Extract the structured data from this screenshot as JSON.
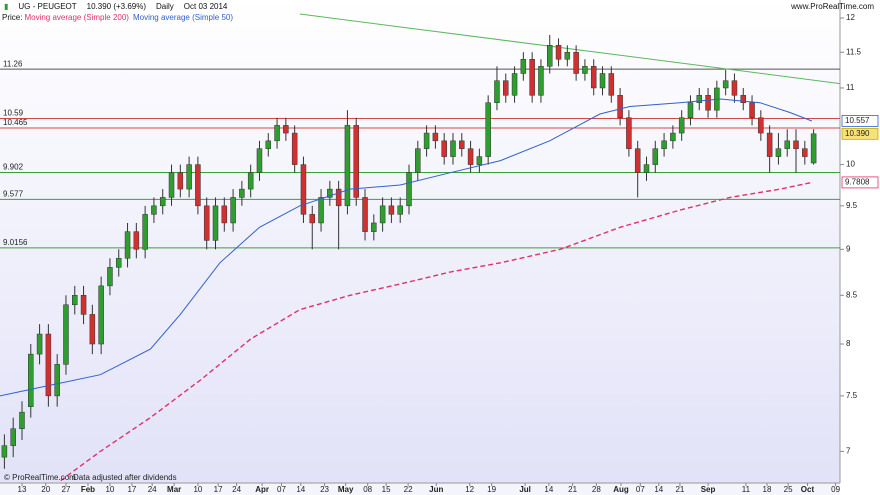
{
  "header": {
    "symbol": "UG - PEUGEOT",
    "price": "10.390 (+3.69%)",
    "period": "Daily",
    "date": "Oct 03 2014",
    "price_label": "Price:",
    "site": "www.ProRealTime.com"
  },
  "footer": {
    "copyright": "© ProRealTime.com",
    "note": "Data adjusted after dividends"
  },
  "chart_data": {
    "type": "candlestick",
    "log": true,
    "up_color": "#2e9e2e",
    "down_color": "#d03030",
    "open": [
      6.95,
      7.05,
      7.2,
      7.4,
      7.9,
      8.1,
      7.5,
      7.8,
      8.4,
      8.5,
      8.3,
      8.0,
      8.6,
      8.8,
      8.9,
      9.2,
      9.0,
      9.4,
      9.5,
      9.6,
      9.9,
      9.7,
      10.0,
      9.5,
      9.1,
      9.5,
      9.3,
      9.6,
      9.7,
      9.9,
      10.2,
      10.3,
      10.5,
      10.4,
      10.0,
      9.4,
      9.3,
      9.6,
      9.7,
      9.5,
      10.5,
      9.6,
      9.2,
      9.3,
      9.5,
      9.4,
      9.5,
      9.9,
      10.2,
      10.4,
      10.3,
      10.1,
      10.3,
      10.2,
      10.0,
      10.1,
      10.8,
      11.1,
      10.9,
      11.2,
      11.4,
      10.9,
      11.3,
      11.6,
      11.4,
      11.5,
      11.2,
      11.3,
      11.0,
      11.2,
      10.9,
      10.6,
      10.2,
      9.9,
      10.0,
      10.2,
      10.3,
      10.4,
      10.6,
      10.8,
      10.9,
      10.7,
      11.0,
      11.1,
      10.9,
      10.8,
      10.6,
      10.4,
      10.1,
      10.2,
      10.3,
      10.2,
      10.02
    ],
    "high": [
      7.15,
      7.3,
      7.45,
      8.0,
      8.2,
      8.2,
      7.9,
      8.5,
      8.6,
      8.6,
      8.4,
      8.7,
      8.9,
      9.0,
      9.3,
      9.3,
      9.5,
      9.6,
      9.7,
      10.0,
      10.0,
      10.1,
      10.1,
      9.6,
      9.6,
      9.6,
      9.7,
      9.8,
      10.0,
      10.3,
      10.4,
      10.6,
      10.6,
      10.5,
      10.1,
      9.5,
      9.7,
      9.8,
      9.8,
      10.7,
      10.6,
      9.7,
      9.4,
      9.6,
      9.6,
      9.6,
      10.0,
      10.3,
      10.5,
      10.5,
      10.4,
      10.4,
      10.4,
      10.3,
      10.2,
      10.9,
      11.3,
      11.2,
      11.3,
      11.5,
      11.5,
      11.4,
      11.75,
      11.7,
      11.6,
      11.6,
      11.4,
      11.4,
      11.3,
      11.3,
      11.0,
      10.7,
      10.3,
      10.1,
      10.3,
      10.4,
      10.5,
      10.7,
      10.9,
      11.0,
      11.0,
      11.1,
      11.25,
      11.2,
      11.0,
      10.9,
      10.7,
      10.5,
      10.4,
      10.45,
      10.45,
      10.3,
      10.45
    ],
    "low": [
      6.85,
      6.95,
      7.1,
      7.3,
      7.8,
      7.4,
      7.4,
      7.7,
      8.3,
      8.2,
      7.9,
      7.9,
      8.5,
      8.7,
      8.8,
      8.9,
      8.9,
      9.3,
      9.4,
      9.5,
      9.6,
      9.6,
      9.4,
      9.0,
      9.0,
      9.2,
      9.2,
      9.5,
      9.6,
      9.8,
      10.1,
      10.2,
      10.3,
      9.9,
      9.3,
      9.0,
      9.2,
      9.5,
      9.0,
      9.4,
      9.5,
      9.1,
      9.1,
      9.2,
      9.3,
      9.3,
      9.4,
      9.8,
      10.1,
      10.2,
      10.0,
      10.0,
      10.1,
      9.9,
      9.9,
      10.0,
      10.7,
      10.8,
      10.8,
      11.1,
      10.8,
      10.8,
      11.2,
      11.3,
      11.3,
      11.1,
      11.1,
      10.9,
      10.9,
      10.8,
      10.5,
      10.1,
      9.6,
      9.8,
      9.9,
      10.1,
      10.2,
      10.3,
      10.5,
      10.7,
      10.6,
      10.6,
      10.9,
      10.8,
      10.7,
      10.5,
      10.3,
      9.9,
      10.0,
      10.1,
      9.9,
      10.0,
      10.0
    ],
    "close": [
      7.05,
      7.2,
      7.35,
      7.9,
      8.1,
      7.5,
      7.8,
      8.4,
      8.5,
      8.3,
      8.0,
      8.6,
      8.8,
      8.9,
      9.2,
      9.0,
      9.4,
      9.5,
      9.6,
      9.9,
      9.7,
      10.0,
      9.5,
      9.1,
      9.5,
      9.3,
      9.6,
      9.7,
      9.9,
      10.2,
      10.3,
      10.5,
      10.4,
      10.0,
      9.4,
      9.3,
      9.6,
      9.7,
      9.5,
      10.5,
      9.6,
      9.2,
      9.3,
      9.5,
      9.4,
      9.5,
      9.9,
      10.2,
      10.4,
      10.3,
      10.1,
      10.3,
      10.2,
      10.0,
      10.1,
      10.8,
      11.1,
      10.9,
      11.2,
      11.4,
      10.9,
      11.3,
      11.6,
      11.4,
      11.5,
      11.2,
      11.3,
      11.0,
      11.2,
      10.9,
      10.6,
      10.2,
      9.9,
      10.0,
      10.2,
      10.3,
      10.4,
      10.6,
      10.8,
      10.9,
      10.7,
      11.0,
      11.1,
      10.9,
      10.8,
      10.6,
      10.4,
      10.1,
      10.2,
      10.3,
      10.2,
      10.1,
      10.39
    ],
    "last_price": {
      "value": 10.39,
      "label": "10.390"
    },
    "series": [
      {
        "name": "Moving average (Simple 200)",
        "color": "#e0306a",
        "dash": true,
        "x": [
          6.4,
          10.9,
          16.6,
          22.3,
          28,
          33.6,
          39.3,
          45,
          50.7,
          56.4,
          63.2,
          70,
          76.8,
          82.5,
          88.2,
          91.8
        ],
        "values": [
          6.75,
          7.0,
          7.3,
          7.65,
          8.05,
          8.35,
          8.5,
          8.62,
          8.75,
          8.85,
          9.0,
          9.25,
          9.45,
          9.6,
          9.7,
          9.7808
        ]
      },
      {
        "name": "Moving average (Simple 50)",
        "color": "#3060d0",
        "dash": false,
        "x": [
          -0.5,
          5.2,
          10.9,
          16.6,
          20,
          24.5,
          29,
          33.6,
          39.3,
          45,
          50.7,
          56.4,
          62,
          67.7,
          71.1,
          76.8,
          81.4,
          85.9,
          89.3,
          91.8
        ],
        "values": [
          7.5,
          7.6,
          7.7,
          7.95,
          8.3,
          8.85,
          9.25,
          9.5,
          9.7,
          9.75,
          9.9,
          10.05,
          10.3,
          10.65,
          10.75,
          10.8,
          10.85,
          10.8,
          10.67,
          10.557
        ]
      }
    ],
    "levels": [
      {
        "value": 11.26,
        "color": "#555555"
      },
      {
        "value": 10.59,
        "color": "#d04848"
      },
      {
        "value": 10.465,
        "color": "#d04848"
      },
      {
        "value": 9.902,
        "color": "#3aa03a"
      },
      {
        "value": 9.577,
        "color": "#3aa03a"
      },
      {
        "value": 9.0156,
        "color": "#3aa03a"
      }
    ],
    "trendline": {
      "x": [
        33.6,
        95
      ],
      "values": [
        12.06,
        11.06
      ],
      "color": "#5cb85c"
    },
    "xlim": [
      -0.5,
      95
    ],
    "ylim": [
      6.73,
      12.09
    ],
    "yticks": [
      7,
      7.5,
      8,
      8.5,
      9,
      9.5,
      10,
      11,
      11.5,
      12
    ],
    "xticks": [
      {
        "value": 2.0,
        "label": "13"
      },
      {
        "value": 4.7,
        "label": "20"
      },
      {
        "value": 7.0,
        "label": "27"
      },
      {
        "value": 9.5,
        "label": "Feb"
      },
      {
        "value": 12.0,
        "label": "10"
      },
      {
        "value": 14.5,
        "label": "17"
      },
      {
        "value": 16.8,
        "label": "24"
      },
      {
        "value": 19.3,
        "label": "Mar"
      },
      {
        "value": 22.0,
        "label": "10"
      },
      {
        "value": 24.3,
        "label": "17"
      },
      {
        "value": 26.4,
        "label": "24"
      },
      {
        "value": 29.3,
        "label": "Apr"
      },
      {
        "value": 31.5,
        "label": "07"
      },
      {
        "value": 33.7,
        "label": "14"
      },
      {
        "value": 36.4,
        "label": "23"
      },
      {
        "value": 38.8,
        "label": "May"
      },
      {
        "value": 41.3,
        "label": "08"
      },
      {
        "value": 43.4,
        "label": "15"
      },
      {
        "value": 45.9,
        "label": "22"
      },
      {
        "value": 49.1,
        "label": "Jun"
      },
      {
        "value": 52.9,
        "label": "12"
      },
      {
        "value": 55.4,
        "label": "19"
      },
      {
        "value": 59.2,
        "label": "Jul"
      },
      {
        "value": 61.9,
        "label": "14"
      },
      {
        "value": 64.6,
        "label": "21"
      },
      {
        "value": 67.3,
        "label": "28"
      },
      {
        "value": 70.1,
        "label": "Aug"
      },
      {
        "value": 72.3,
        "label": "07"
      },
      {
        "value": 74.4,
        "label": "14"
      },
      {
        "value": 76.8,
        "label": "21"
      },
      {
        "value": 80.0,
        "label": "Sep"
      },
      {
        "value": 84.3,
        "label": "11"
      },
      {
        "value": 86.7,
        "label": "18"
      },
      {
        "value": 89.1,
        "label": "25"
      },
      {
        "value": 91.3,
        "label": "Oct"
      },
      {
        "value": 94.5,
        "label": "09"
      }
    ]
  }
}
